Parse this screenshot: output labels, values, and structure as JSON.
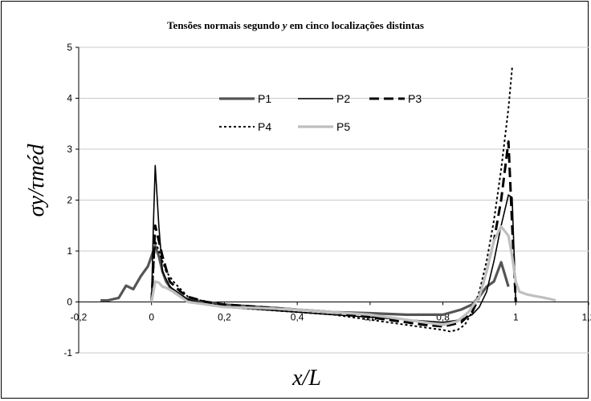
{
  "chart_data": {
    "type": "line",
    "title_parts": [
      "Tensões normais segundo ",
      "y",
      "  em cinco localizações distintas"
    ],
    "xlabel": "x/L",
    "ylabel": "σy/τméd",
    "xlim": [
      -0.2,
      1.2
    ],
    "ylim": [
      -1,
      5
    ],
    "x_ticks": [
      -0.2,
      0,
      0.2,
      0.4,
      0.6,
      0.8,
      1,
      1.2
    ],
    "x_tick_labels": [
      "-0,2",
      "0",
      "0,2",
      "0,4",
      "0,6",
      "0,8",
      "1",
      "1,2"
    ],
    "y_ticks": [
      -1,
      0,
      1,
      2,
      3,
      4,
      5
    ],
    "y_tick_labels": [
      "-1",
      "0",
      "1",
      "2",
      "3",
      "4",
      "5"
    ],
    "grid": "horizontal",
    "legend_position": "top-center",
    "series": [
      {
        "name": "P1",
        "color": "#555555",
        "style": "solid-thick",
        "x": [
          -0.14,
          -0.12,
          -0.09,
          -0.07,
          -0.05,
          -0.03,
          -0.01,
          0.0,
          0.01,
          0.02,
          0.03,
          0.04,
          0.06,
          0.08,
          0.1,
          0.15,
          0.2,
          0.3,
          0.4,
          0.5,
          0.6,
          0.7,
          0.8,
          0.85,
          0.88,
          0.9,
          0.92,
          0.94,
          0.96,
          0.98
        ],
        "y": [
          0.03,
          0.03,
          0.08,
          0.32,
          0.25,
          0.5,
          0.7,
          0.9,
          1.1,
          0.9,
          0.6,
          0.4,
          0.2,
          0.1,
          0.05,
          0.0,
          -0.05,
          -0.1,
          -0.15,
          -0.2,
          -0.22,
          -0.25,
          -0.25,
          -0.15,
          -0.05,
          0.1,
          0.3,
          0.4,
          0.78,
          0.3
        ]
      },
      {
        "name": "P2",
        "color": "#000000",
        "style": "solid-thin",
        "x": [
          0.0,
          0.005,
          0.01,
          0.02,
          0.03,
          0.05,
          0.08,
          0.1,
          0.15,
          0.2,
          0.3,
          0.4,
          0.5,
          0.6,
          0.7,
          0.8,
          0.85,
          0.88,
          0.9,
          0.92,
          0.94,
          0.96,
          0.98,
          0.99,
          1.0
        ],
        "y": [
          0.0,
          1.5,
          2.68,
          1.5,
          0.6,
          0.3,
          0.15,
          0.05,
          -0.05,
          -0.1,
          -0.15,
          -0.2,
          -0.25,
          -0.3,
          -0.35,
          -0.4,
          -0.35,
          -0.25,
          -0.1,
          0.2,
          0.8,
          1.5,
          2.1,
          2.05,
          0.0
        ]
      },
      {
        "name": "P3",
        "color": "#000000",
        "style": "dash-thick",
        "x": [
          0.0,
          0.01,
          0.02,
          0.03,
          0.05,
          0.08,
          0.1,
          0.15,
          0.2,
          0.3,
          0.4,
          0.5,
          0.6,
          0.7,
          0.75,
          0.8,
          0.82,
          0.85,
          0.88,
          0.9,
          0.92,
          0.94,
          0.96,
          0.98,
          0.99,
          1.0
        ],
        "y": [
          0.0,
          1.5,
          1.2,
          0.9,
          0.4,
          0.2,
          0.1,
          0.0,
          -0.05,
          -0.1,
          -0.15,
          -0.2,
          -0.3,
          -0.4,
          -0.45,
          -0.48,
          -0.45,
          -0.4,
          -0.2,
          0.1,
          0.6,
          1.2,
          2.0,
          3.15,
          1.5,
          0.0
        ]
      },
      {
        "name": "P4",
        "color": "#000000",
        "style": "dot",
        "x": [
          0.0,
          0.01,
          0.02,
          0.04,
          0.06,
          0.08,
          0.1,
          0.15,
          0.2,
          0.3,
          0.4,
          0.5,
          0.6,
          0.7,
          0.75,
          0.8,
          0.82,
          0.84,
          0.86,
          0.88,
          0.9,
          0.92,
          0.94,
          0.96,
          0.98,
          0.99
        ],
        "y": [
          0.0,
          1.2,
          1.0,
          0.6,
          0.4,
          0.25,
          0.1,
          0.0,
          -0.1,
          -0.15,
          -0.2,
          -0.25,
          -0.35,
          -0.45,
          -0.5,
          -0.55,
          -0.58,
          -0.55,
          -0.45,
          -0.2,
          0.2,
          0.8,
          1.6,
          2.6,
          3.8,
          4.6
        ]
      },
      {
        "name": "P5",
        "color": "#bfbfbf",
        "style": "solid-thick",
        "x": [
          0.0,
          0.01,
          0.02,
          0.03,
          0.04,
          0.06,
          0.08,
          0.1,
          0.15,
          0.2,
          0.3,
          0.4,
          0.5,
          0.6,
          0.7,
          0.8,
          0.84,
          0.87,
          0.9,
          0.92,
          0.94,
          0.96,
          0.98,
          0.99,
          1.0,
          1.01,
          1.03,
          1.05,
          1.08,
          1.11
        ],
        "y": [
          0.0,
          0.4,
          0.38,
          0.3,
          0.28,
          0.2,
          0.1,
          0.0,
          -0.05,
          -0.1,
          -0.12,
          -0.15,
          -0.2,
          -0.25,
          -0.35,
          -0.45,
          -0.38,
          -0.2,
          0.1,
          0.6,
          1.2,
          1.48,
          1.3,
          0.9,
          0.4,
          0.2,
          0.15,
          0.12,
          0.08,
          0.03
        ]
      }
    ]
  }
}
